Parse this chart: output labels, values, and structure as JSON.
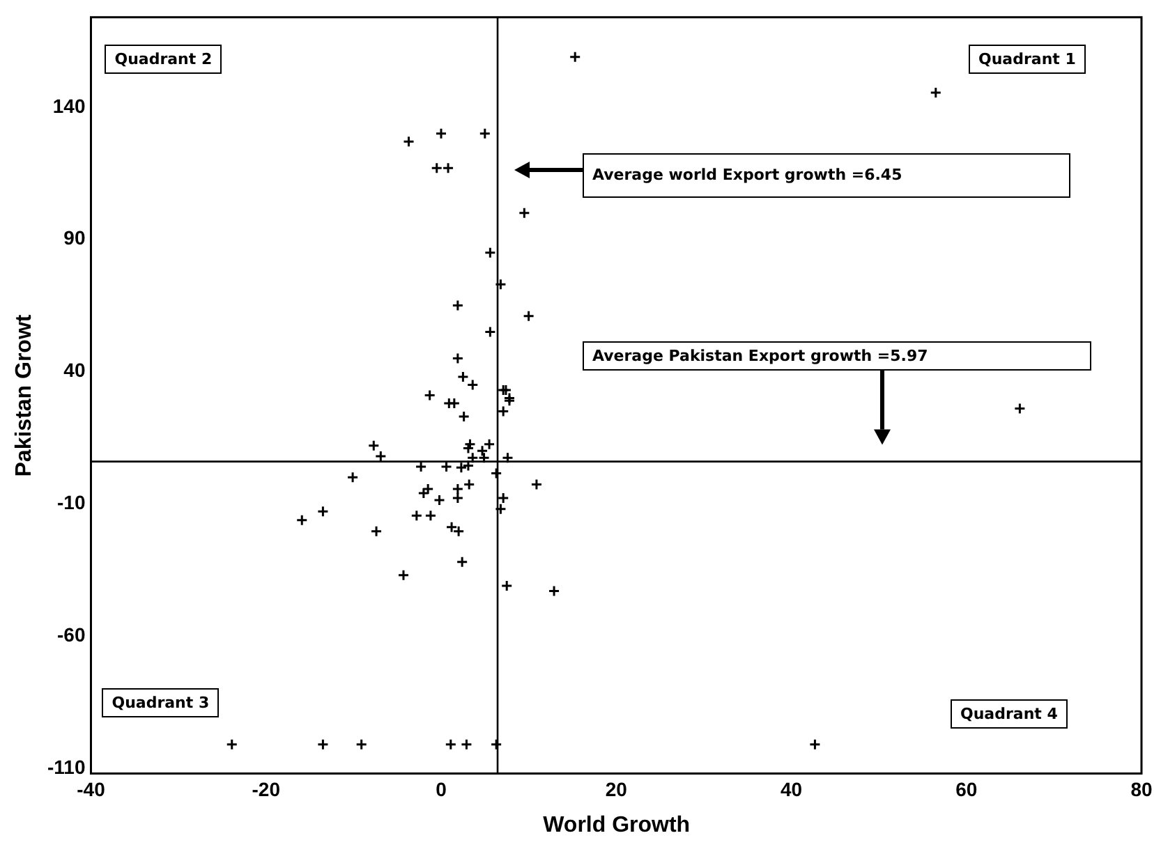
{
  "chart_data": {
    "type": "scatter",
    "xlabel": "World Growth",
    "ylabel": "Pakistan Growt",
    "xlim": [
      -40,
      80
    ],
    "ylim": [
      -112,
      174
    ],
    "xticks": [
      -40,
      -20,
      0,
      20,
      40,
      60,
      80
    ],
    "yticks": [
      -110,
      -60,
      -10,
      40,
      90,
      140
    ],
    "grid": false,
    "legend": false,
    "marker": "cross",
    "series": [
      {
        "color": "#000000",
        "x": [
          15.3,
          0,
          5.0,
          -3.7,
          -0.5,
          0.8,
          9.5,
          5.6,
          6.8,
          1.9,
          10,
          5.6,
          1.9,
          2.5,
          3.6,
          -1.3,
          7.4,
          7.8,
          1.5,
          0.9,
          7.1,
          7.8,
          7.1,
          2.6,
          -7.7,
          -6.9,
          3.3,
          3.1,
          5.5,
          4.7,
          3.6,
          4.9,
          7.6,
          -2.3,
          0.6,
          2.3,
          3.1,
          6.3,
          -10.1,
          10.9,
          3.2,
          1.9,
          1.9,
          -1.5,
          -2,
          -0.2,
          -2.8,
          -1.2,
          7.1,
          6.8,
          -13.5,
          -15.9,
          -7.4,
          1.2,
          2.0,
          2.4,
          -4.3,
          7.5,
          12.9,
          -23.9,
          -13.5,
          -9.1,
          1.1,
          2.9,
          6.3,
          42.7,
          56.5,
          66.1
        ],
        "values": [
          159,
          130,
          130,
          127,
          117,
          117,
          100,
          85,
          73,
          65,
          61,
          55,
          45,
          38,
          35,
          31,
          33,
          30,
          28,
          28,
          33,
          29,
          25,
          23,
          12,
          8,
          12.5,
          11,
          12.5,
          10,
          7.4,
          7.4,
          7.4,
          4,
          4,
          3.7,
          4.4,
          1.5,
          0,
          -2.7,
          -2.7,
          -4.4,
          -7.8,
          -4.4,
          -6,
          -8.6,
          -14.5,
          -14.5,
          -7.8,
          -12,
          -12.9,
          -16.2,
          -20.4,
          -18.8,
          -20.4,
          -32,
          -37,
          -41,
          -43,
          -101,
          -101,
          -101,
          -101,
          -101,
          -101,
          -101,
          145.5,
          26
        ]
      }
    ],
    "ref_lines": [
      {
        "axis": "x",
        "value": 6.45
      },
      {
        "axis": "y",
        "value": 5.97
      }
    ],
    "annotations": [
      "Quadrant 2",
      "Quadrant 1",
      "Quadrant 3",
      "Quadrant 4",
      "Average world Export growth =6.45",
      "Average Pakistan Export growth =5.97"
    ]
  }
}
